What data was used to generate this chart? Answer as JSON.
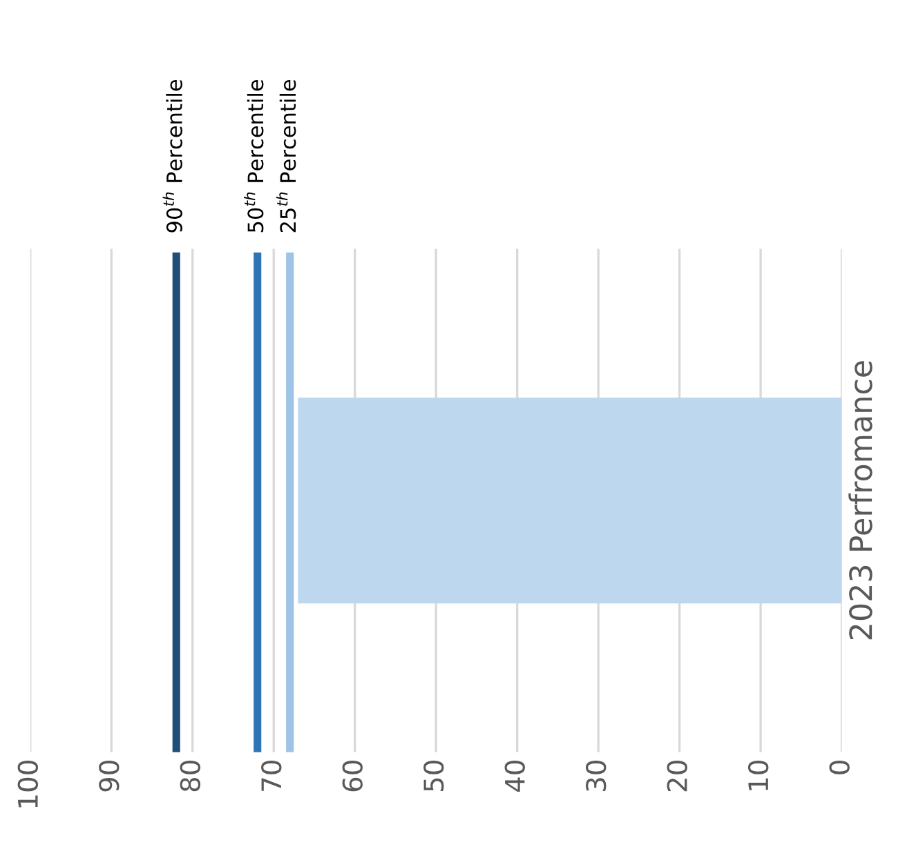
{
  "chart_data": {
    "type": "bar",
    "orientation": "horizontal",
    "categories": [
      "2023 Perfromance"
    ],
    "values": [
      67
    ],
    "color": "#bdd7ee",
    "xlim": [
      100,
      0
    ],
    "xticks": [
      100,
      90,
      80,
      70,
      60,
      50,
      40,
      30,
      20,
      10,
      0
    ],
    "grid": "x",
    "ref_lines": [
      {
        "axis": "x",
        "value": 82,
        "label": "90$^{th}$ Percentile",
        "color": "#1f4e79"
      },
      {
        "axis": "x",
        "value": 72,
        "label": "50$^{th}$ Percentile",
        "color": "#2e75b6"
      },
      {
        "axis": "x",
        "value": 68,
        "label": "25$^{th}$ Percentile",
        "color": "#9dc3e6"
      }
    ]
  }
}
